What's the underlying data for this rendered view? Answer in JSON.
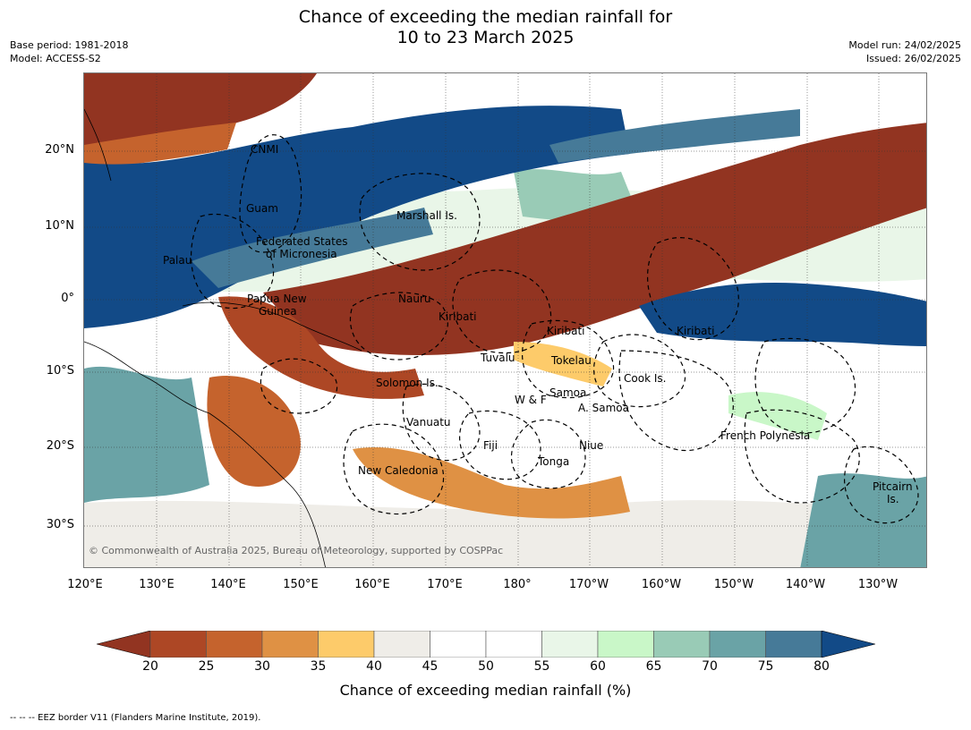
{
  "title_line1": "Chance of exceeding the median rainfall for",
  "title_line2": "10 to 23 March 2025",
  "base_period": "Base period: 1981-2018",
  "model": "Model: ACCESS-S2",
  "model_run": "Model run: 24/02/2025",
  "issued": "Issued: 26/02/2025",
  "copyright": "© Commonwealth of Australia 2025, Bureau of Meteorology, supported by COSPPac",
  "footnote": "--  --  -- EEZ border V11 (Flanders Marine Institute, 2019).",
  "lat_labels": [
    "20°N",
    "10°N",
    "0°",
    "10°S",
    "20°S",
    "30°S"
  ],
  "lon_labels": [
    "120°E",
    "130°E",
    "140°E",
    "150°E",
    "160°E",
    "170°E",
    "180°",
    "170°W",
    "160°W",
    "150°W",
    "140°W",
    "130°W"
  ],
  "region_labels": [
    "CNMI",
    "Guam",
    "Marshall Is.",
    "Federated States",
    "of Micronesia",
    "Palau",
    "Papua New",
    "Guinea",
    "Nauru",
    "Kiribati",
    "Kiribati",
    "Kiribati",
    "Tuvalu",
    "Tokelau",
    "Solomon Is.",
    "Samoa",
    "W & F",
    "A. Samoa",
    "Cook Is.",
    "Vanuatu",
    "Fiji",
    "Niue",
    "French Polynesia",
    "Tonga",
    "New Caledonia",
    "Pitcairn",
    "Is."
  ],
  "colorbar": {
    "label": "Chance of exceeding median rainfall (%)",
    "ticks": [
      "20",
      "25",
      "30",
      "35",
      "40",
      "45",
      "50",
      "55",
      "60",
      "65",
      "70",
      "75",
      "80"
    ],
    "colors": [
      "#923421",
      "#ad4725",
      "#c5632d",
      "#df9144",
      "#fdcb6a",
      "#efede8",
      "#ffffff",
      "#ffffff",
      "#e9f6e8",
      "#c9f7c8",
      "#99cbb6",
      "#6aa3a6",
      "#467a98",
      "#124a87"
    ]
  }
}
